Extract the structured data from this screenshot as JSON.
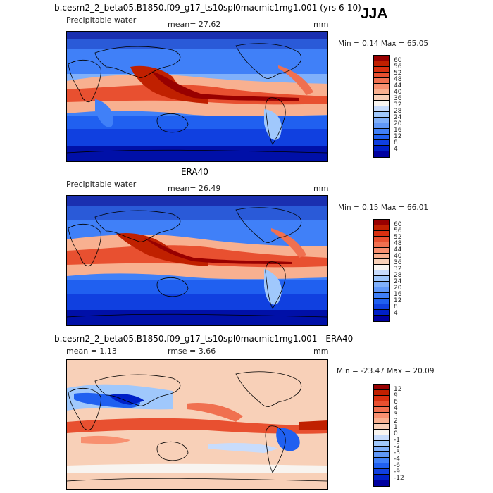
{
  "header": {
    "title": "b.cesm2_2_beta05.B1850.f09_g17_ts10spl0macmic1mg1.001 (yrs 6-10)",
    "season": "JJA"
  },
  "panels": [
    {
      "variable": "Precipitable water",
      "mean_label": "mean=  27.62",
      "units": "mm",
      "minmax_label": "Min =   0.14 Max =  65.05",
      "colorbar_ticks": [
        "60",
        "56",
        "52",
        "48",
        "44",
        "40",
        "36",
        "32",
        "28",
        "24",
        "20",
        "16",
        "12",
        "8",
        "4"
      ],
      "colors": [
        "#0000a0",
        "#0020c8",
        "#1040e0",
        "#2060f0",
        "#4080f8",
        "#6098f8",
        "#80b0fa",
        "#a0c8fc",
        "#c8dcfc",
        "#f8f4f0",
        "#f8d0b8",
        "#f8b090",
        "#f89070",
        "#f07050",
        "#e85030",
        "#d83010",
        "#c02000",
        "#980000"
      ]
    },
    {
      "title": "ERA40",
      "variable": "Precipitable water",
      "mean_label": "mean=  26.49",
      "units": "mm",
      "minmax_label": "Min =   0.15 Max =  66.01",
      "colorbar_ticks": [
        "60",
        "56",
        "52",
        "48",
        "44",
        "40",
        "36",
        "32",
        "28",
        "24",
        "20",
        "16",
        "12",
        "8",
        "4"
      ],
      "colors": [
        "#0000a0",
        "#0020c8",
        "#1040e0",
        "#2060f0",
        "#4080f8",
        "#6098f8",
        "#80b0fa",
        "#a0c8fc",
        "#c8dcfc",
        "#f8f4f0",
        "#f8d0b8",
        "#f8b090",
        "#f89070",
        "#f07050",
        "#e85030",
        "#d83010",
        "#c02000",
        "#980000"
      ]
    },
    {
      "title": "b.cesm2_2_beta05.B1850.f09_g17_ts10spl0macmic1mg1.001 - ERA40",
      "mean_label": "mean =   1.13",
      "rmse_label": "rmse =   3.66",
      "units": "mm",
      "minmax_label": "Min = -23.47 Max =  20.09",
      "colorbar_ticks": [
        "12",
        "9",
        "6",
        "4",
        "3",
        "2",
        "1",
        "0",
        "-1",
        "-2",
        "-3",
        "-4",
        "-6",
        "-9",
        "-12"
      ],
      "colors": [
        "#0000a0",
        "#0020c8",
        "#1040e0",
        "#2060f0",
        "#4080f8",
        "#6098f8",
        "#80b0fa",
        "#a0c8fc",
        "#c8dcfc",
        "#f8f4f0",
        "#f8d0b8",
        "#f8b090",
        "#f89070",
        "#f07050",
        "#e85030",
        "#d83010",
        "#c02000",
        "#980000"
      ]
    }
  ]
}
